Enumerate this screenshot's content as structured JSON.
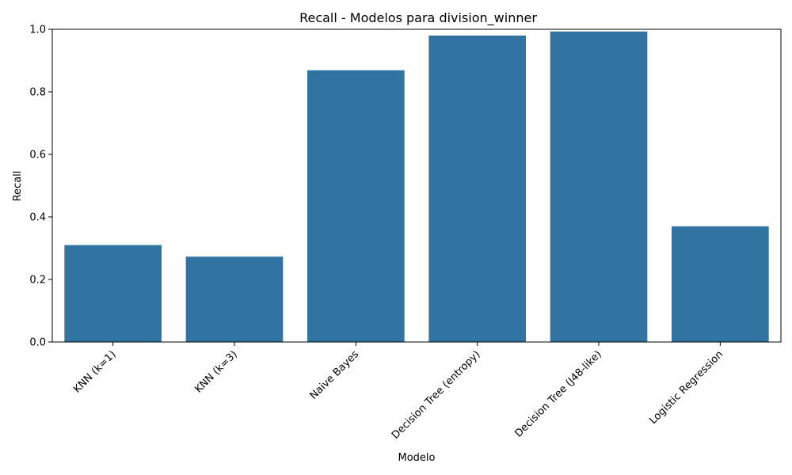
{
  "chart_data": {
    "type": "bar",
    "title": "Recall - Modelos para division_winner",
    "xlabel": "Modelo",
    "ylabel": "Recall",
    "categories": [
      "KNN (k=1)",
      "KNN (k=3)",
      "Naive Bayes",
      "Decision Tree (entropy)",
      "Decision Tree (J48-like)",
      "Logistic Regression"
    ],
    "values": [
      0.31,
      0.273,
      0.869,
      0.98,
      0.993,
      0.37
    ],
    "ylim": [
      0,
      1.0
    ],
    "yticks": [
      "0.0",
      "0.2",
      "0.4",
      "0.6",
      "0.8",
      "1.0"
    ],
    "bar_color": "#3274a1",
    "grid": false,
    "legend": "none"
  }
}
